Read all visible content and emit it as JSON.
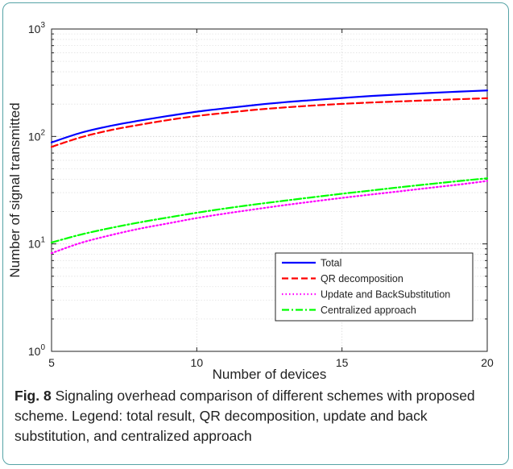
{
  "chart_data": {
    "type": "line",
    "xlabel": "Number of devices",
    "ylabel": "Number of signal transmitted",
    "xlim": [
      5,
      20
    ],
    "ylim": [
      1,
      1000
    ],
    "yscale": "log",
    "grid": true,
    "legend_position": "lower-right",
    "x_ticks": [
      "5",
      "10",
      "15",
      "20"
    ],
    "y_ticks": [
      {
        "base": "10",
        "exp": "0"
      },
      {
        "base": "10",
        "exp": "1"
      },
      {
        "base": "10",
        "exp": "2"
      },
      {
        "base": "10",
        "exp": "3"
      }
    ],
    "x": [
      5,
      6,
      7,
      8,
      9,
      10,
      11,
      12,
      13,
      14,
      15,
      16,
      17,
      18,
      19,
      20
    ],
    "series": [
      {
        "name": "Total",
        "color": "#0000ff",
        "dash": "solid",
        "values": [
          88,
          108,
          125,
          140,
          155,
          170,
          183,
          196,
          208,
          218,
          228,
          238,
          246,
          254,
          261,
          268
        ]
      },
      {
        "name": "QR decomposition",
        "color": "#ff0000",
        "dash": "dashed",
        "values": [
          80,
          98,
          114,
          128,
          142,
          155,
          166,
          177,
          186,
          194,
          201,
          207,
          212,
          217,
          222,
          227
        ]
      },
      {
        "name": "Update and BackSubstitution",
        "color": "#ff00ff",
        "dash": "dotted",
        "values": [
          8.2,
          10.2,
          12.0,
          13.8,
          15.5,
          17.4,
          19.2,
          21.0,
          22.9,
          24.8,
          26.8,
          28.8,
          30.9,
          33.2,
          35.6,
          38.5
        ]
      },
      {
        "name": "Centralized approach",
        "color": "#00ff00",
        "dash": "dashdot",
        "values": [
          10.3,
          12.2,
          14.0,
          15.8,
          17.6,
          19.5,
          21.4,
          23.3,
          25.2,
          27.2,
          29.3,
          31.4,
          33.7,
          36.0,
          38.4,
          40.8
        ]
      }
    ]
  },
  "caption": {
    "label": "Fig. 8",
    "text": " Signaling overhead comparison of different schemes with proposed scheme. Legend: total result, QR decomposition, update and back substitution, and centralized approach"
  }
}
